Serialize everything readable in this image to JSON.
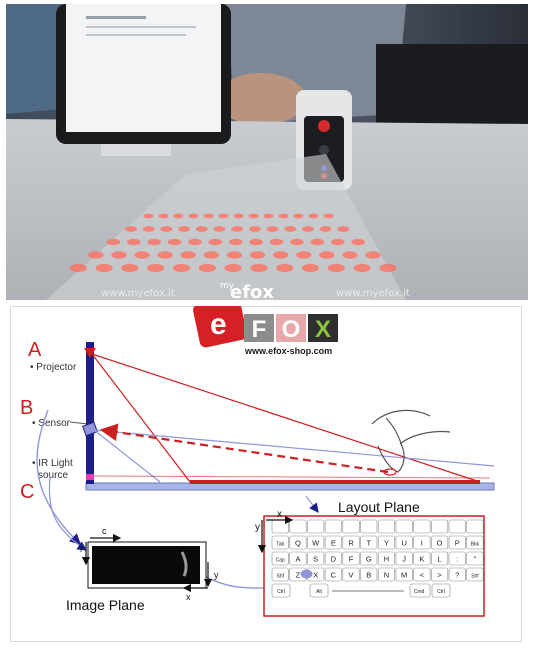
{
  "photo": {
    "watermark_left": "www.myefox.it",
    "watermark_right": "www.myefox.it",
    "logo_prefix": "my",
    "logo_word": "efox"
  },
  "brand": {
    "logo_e": "e",
    "logo_letters": [
      "F",
      "O",
      "X"
    ],
    "url": "www.efox-shop.com"
  },
  "diagram": {
    "label_a": "A",
    "label_a_text": "• Projector",
    "label_b": "B",
    "label_b_text": "• Sensor",
    "label_c": "C",
    "label_c_text_1": "• IR Light",
    "label_c_text_2": "source",
    "layout_plane_title": "Layout Plane",
    "image_plane_title": "Image Plane",
    "axis_x": "x",
    "axis_y": "y",
    "axis_c": "c",
    "axis_r": "r",
    "key_rows": [
      [
        "Tab",
        "Q",
        "W",
        "E",
        "R",
        "T",
        "Y",
        "U",
        "I",
        "O",
        "P",
        "Bkk"
      ],
      [
        "Cap",
        "A",
        "S",
        "D",
        "F",
        "G",
        "H",
        "J",
        "K",
        "L",
        ":",
        "\""
      ],
      [
        "Shf",
        "Z",
        "X",
        "C",
        "V",
        "B",
        "N",
        "M",
        "<",
        ">",
        "?",
        "Shf"
      ]
    ],
    "bottom_row": [
      "Ctrl",
      "Alt",
      "Cmd",
      "Ctrl"
    ]
  },
  "colors": {
    "red": "#cc1f1f",
    "navy": "#1c1f8a",
    "blue_line": "#8f95d8",
    "plane_blue": "#a9b4e6"
  }
}
